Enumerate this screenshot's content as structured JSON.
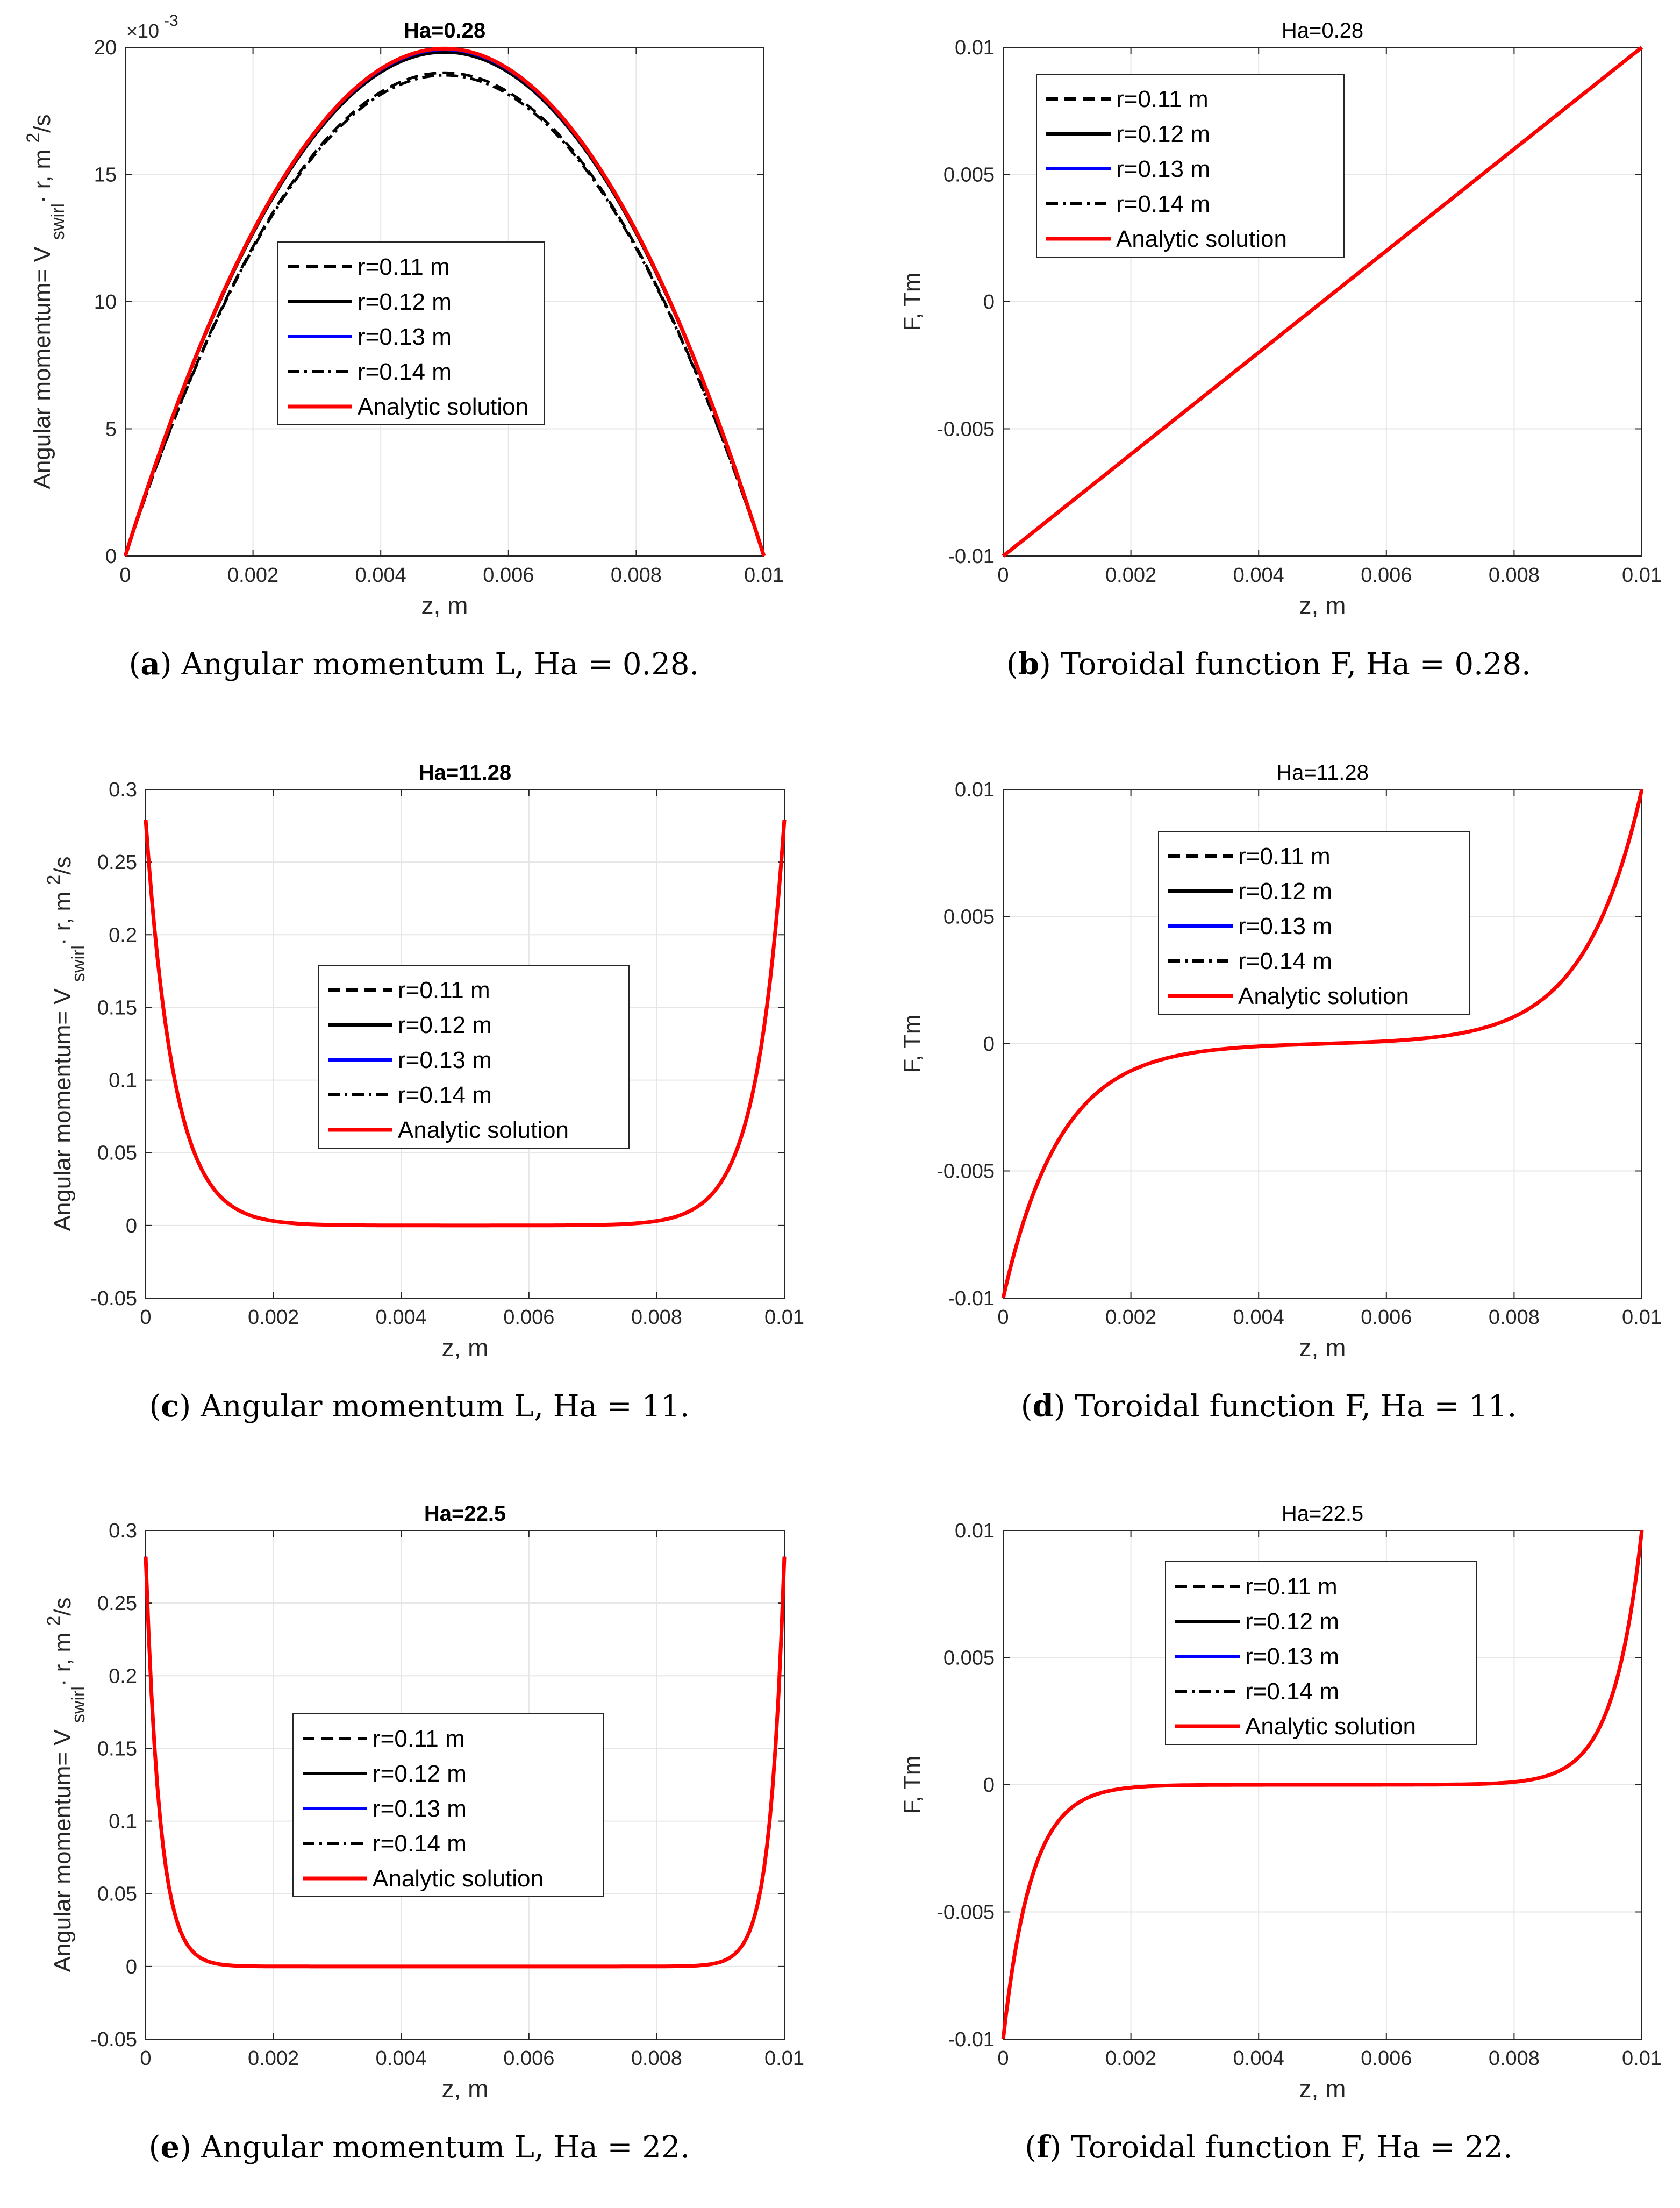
{
  "chart_data": [
    {
      "panel": "a",
      "type": "line",
      "title": "Ha=0.28",
      "title_bold": true,
      "xlabel": "z, m",
      "ylabel": "Angular momentum= V swirl · r, m 2/s",
      "ylabel_parts": [
        "Angular momentum= V",
        "swirl",
        "· r, m",
        "2",
        "/s"
      ],
      "exponent_label": "×10",
      "exponent_power": "-3",
      "xlim": [
        0,
        0.01
      ],
      "ylim": [
        0,
        20
      ],
      "xticks": [
        0,
        0.002,
        0.004,
        0.006,
        0.008,
        0.01
      ],
      "xtick_labels": [
        "0",
        "0.002",
        "0.004",
        "0.006",
        "0.008",
        "0.01"
      ],
      "yticks": [
        0,
        5,
        10,
        15,
        20
      ],
      "ytick_labels": [
        "0",
        "5",
        "10",
        "15",
        "20"
      ],
      "curve": {
        "kind": "parabola",
        "peak_by_series": [
          19.0,
          19.8,
          19.9,
          18.9,
          19.95
        ]
      },
      "legend": [
        "r=0.11 m",
        "r=0.12 m",
        "r=0.13 m",
        "r=0.14 m",
        "Analytic solution"
      ],
      "caption": {
        "tag": "a",
        "text": "Angular momentum L, Ha = 0.28."
      }
    },
    {
      "panel": "b",
      "type": "line",
      "title": "Ha=0.28",
      "title_bold": false,
      "xlabel": "z, m",
      "ylabel": "F, Tm",
      "xlim": [
        0,
        0.01
      ],
      "ylim": [
        -0.01,
        0.01
      ],
      "xticks": [
        0,
        0.002,
        0.004,
        0.006,
        0.008,
        0.01
      ],
      "xtick_labels": [
        "0",
        "0.002",
        "0.004",
        "0.006",
        "0.008",
        "0.01"
      ],
      "yticks": [
        -0.01,
        -0.005,
        0,
        0.005,
        0.01
      ],
      "ytick_labels": [
        "-0.01",
        "-0.005",
        "0",
        "0.005",
        "0.01"
      ],
      "curve": {
        "kind": "linear",
        "amplitude": 0.01
      },
      "legend": [
        "r=0.11 m",
        "r=0.12 m",
        "r=0.13 m",
        "r=0.14 m",
        "Analytic solution"
      ],
      "caption": {
        "tag": "b",
        "text": "Toroidal function F, Ha = 0.28."
      }
    },
    {
      "panel": "c",
      "type": "line",
      "title": "Ha=11.28",
      "title_bold": true,
      "xlabel": "z, m",
      "ylabel": "Angular momentum= V swirl · r, m 2/s",
      "ylabel_parts": [
        "Angular momentum= V",
        "swirl",
        "· r, m",
        "2",
        "/s"
      ],
      "xlim": [
        0,
        0.01
      ],
      "ylim": [
        -0.05,
        0.3
      ],
      "xticks": [
        0,
        0.002,
        0.004,
        0.006,
        0.008,
        0.01
      ],
      "xtick_labels": [
        "0",
        "0.002",
        "0.004",
        "0.006",
        "0.008",
        "0.01"
      ],
      "yticks": [
        -0.05,
        0,
        0.05,
        0.1,
        0.15,
        0.2,
        0.25,
        0.3
      ],
      "ytick_labels": [
        "-0.05",
        "0",
        "0.05",
        "0.1",
        "0.15",
        "0.2",
        "0.25",
        "0.3"
      ],
      "curve": {
        "kind": "hartmann_plateau",
        "peak": 0.279,
        "ha": 11.28
      },
      "legend": [
        "r=0.11 m",
        "r=0.12 m",
        "r=0.13 m",
        "r=0.14 m",
        "Analytic solution"
      ],
      "caption": {
        "tag": "c",
        "text": "Angular momentum L, Ha = 11."
      }
    },
    {
      "panel": "d",
      "type": "line",
      "title": "Ha=11.28",
      "title_bold": false,
      "xlabel": "z, m",
      "ylabel": "F, Tm",
      "xlim": [
        0,
        0.01
      ],
      "ylim": [
        -0.01,
        0.01
      ],
      "xticks": [
        0,
        0.002,
        0.004,
        0.006,
        0.008,
        0.01
      ],
      "xtick_labels": [
        "0",
        "0.002",
        "0.004",
        "0.006",
        "0.008",
        "0.01"
      ],
      "yticks": [
        -0.01,
        -0.005,
        0,
        0.005,
        0.01
      ],
      "ytick_labels": [
        "-0.01",
        "-0.005",
        "0",
        "0.005",
        "0.01"
      ],
      "curve": {
        "kind": "sinh",
        "amplitude": 0.01,
        "ha": 5.6
      },
      "legend": [
        "r=0.11 m",
        "r=0.12 m",
        "r=0.13 m",
        "r=0.14 m",
        "Analytic solution"
      ],
      "caption": {
        "tag": "d",
        "text": "Toroidal function F, Ha = 11."
      }
    },
    {
      "panel": "e",
      "type": "line",
      "title": "Ha=22.5",
      "title_bold": true,
      "xlabel": "z, m",
      "ylabel": "Angular momentum= V swirl · r, m 2/s",
      "ylabel_parts": [
        "Angular momentum= V",
        "swirl",
        "· r, m",
        "2",
        "/s"
      ],
      "xlim": [
        0,
        0.01
      ],
      "ylim": [
        -0.05,
        0.3
      ],
      "xticks": [
        0,
        0.002,
        0.004,
        0.006,
        0.008,
        0.01
      ],
      "xtick_labels": [
        "0",
        "0.002",
        "0.004",
        "0.006",
        "0.008",
        "0.01"
      ],
      "yticks": [
        -0.05,
        0,
        0.05,
        0.1,
        0.15,
        0.2,
        0.25,
        0.3
      ],
      "ytick_labels": [
        "-0.05",
        "0",
        "0.05",
        "0.1",
        "0.15",
        "0.2",
        "0.25",
        "0.3"
      ],
      "curve": {
        "kind": "hartmann_plateau",
        "peak": 0.282,
        "ha": 22.5
      },
      "legend": [
        "r=0.11 m",
        "r=0.12 m",
        "r=0.13 m",
        "r=0.14 m",
        "Analytic solution"
      ],
      "caption": {
        "tag": "e",
        "text": "Angular momentum L, Ha = 22."
      }
    },
    {
      "panel": "f",
      "type": "line",
      "title": "Ha=22.5",
      "title_bold": false,
      "xlabel": "z, m",
      "ylabel": "F, Tm",
      "xlim": [
        0,
        0.01
      ],
      "ylim": [
        -0.01,
        0.01
      ],
      "xticks": [
        0,
        0.002,
        0.004,
        0.006,
        0.008,
        0.01
      ],
      "xtick_labels": [
        "0",
        "0.002",
        "0.004",
        "0.006",
        "0.008",
        "0.01"
      ],
      "yticks": [
        -0.01,
        -0.005,
        0,
        0.005,
        0.01
      ],
      "ytick_labels": [
        "-0.01",
        "-0.005",
        "0",
        "0.005",
        "0.01"
      ],
      "curve": {
        "kind": "sinh",
        "amplitude": 0.01,
        "ha": 11.25
      },
      "legend": [
        "r=0.11 m",
        "r=0.12 m",
        "r=0.13 m",
        "r=0.14 m",
        "Analytic solution"
      ],
      "caption": {
        "tag": "f",
        "text": "Toroidal function F, Ha = 22."
      }
    }
  ],
  "series_styles": [
    {
      "name": "r=0.11 m",
      "color": "#000000",
      "dash": "dashed"
    },
    {
      "name": "r=0.12 m",
      "color": "#000000",
      "dash": "solid"
    },
    {
      "name": "r=0.13 m",
      "color": "#0000ff",
      "dash": "solid"
    },
    {
      "name": "r=0.14 m",
      "color": "#000000",
      "dash": "dashdot"
    },
    {
      "name": "Analytic solution",
      "color": "#ff0000",
      "dash": "solid"
    }
  ]
}
